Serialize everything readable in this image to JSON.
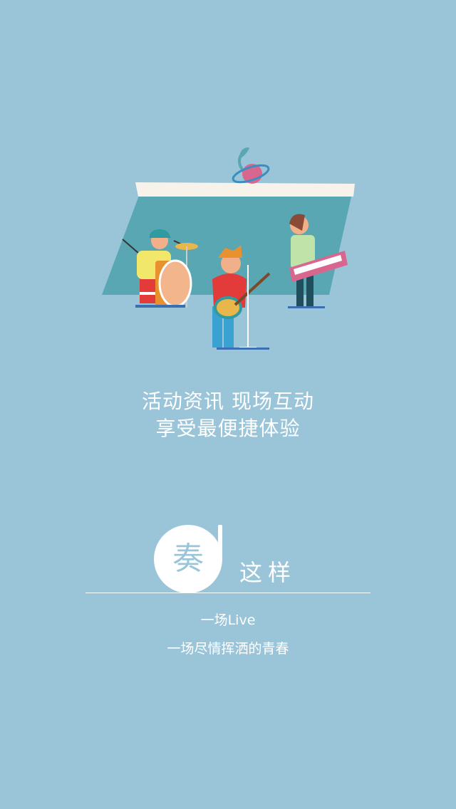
{
  "hero": {
    "line1": "活动资讯 现场互动",
    "line2": "享受最便捷体验"
  },
  "brand": {
    "circle_char": "奏",
    "name": "这样"
  },
  "tagline": {
    "line1": "一场Live",
    "line2": "一场尽情挥洒的青春"
  },
  "colors": {
    "background": "#9ac5d9",
    "stage": "#5aa7b4",
    "text": "#ffffff"
  },
  "icons": [
    "music-planet-logo-icon",
    "band-illustration"
  ]
}
